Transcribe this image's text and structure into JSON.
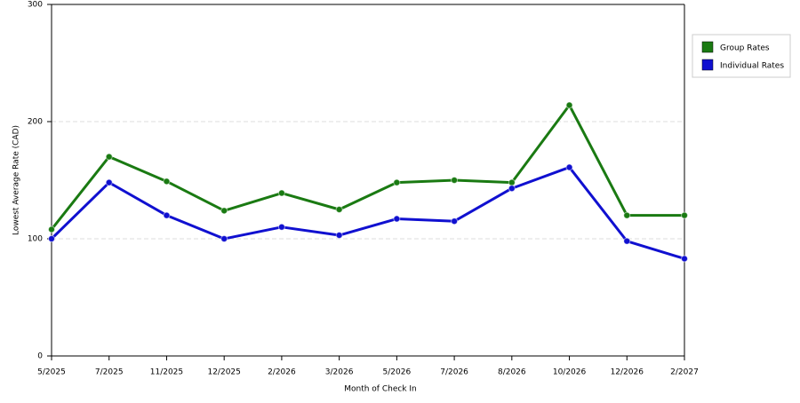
{
  "chart_data": {
    "type": "line",
    "x_label": "Month of Check In",
    "y_label": "Lowest Average Rate (CAD)",
    "categories": [
      "5/2025",
      "7/2025",
      "11/2025",
      "12/2025",
      "2/2026",
      "3/2026",
      "5/2026",
      "7/2026",
      "8/2026",
      "10/2026",
      "12/2026",
      "2/2027"
    ],
    "series": [
      {
        "name": "Group Rates",
        "color": "#1a7a12",
        "values": [
          108,
          170,
          149,
          124,
          139,
          125,
          148,
          150,
          148,
          214,
          120,
          120
        ]
      },
      {
        "name": "Individual Rates",
        "color": "#1010d0",
        "values": [
          100,
          148,
          120,
          100,
          110,
          103,
          117,
          115,
          143,
          161,
          98,
          83
        ]
      }
    ],
    "ylim": [
      0,
      300
    ],
    "yticks": [
      0,
      100,
      200,
      300
    ],
    "grid": true,
    "legend": "right"
  }
}
